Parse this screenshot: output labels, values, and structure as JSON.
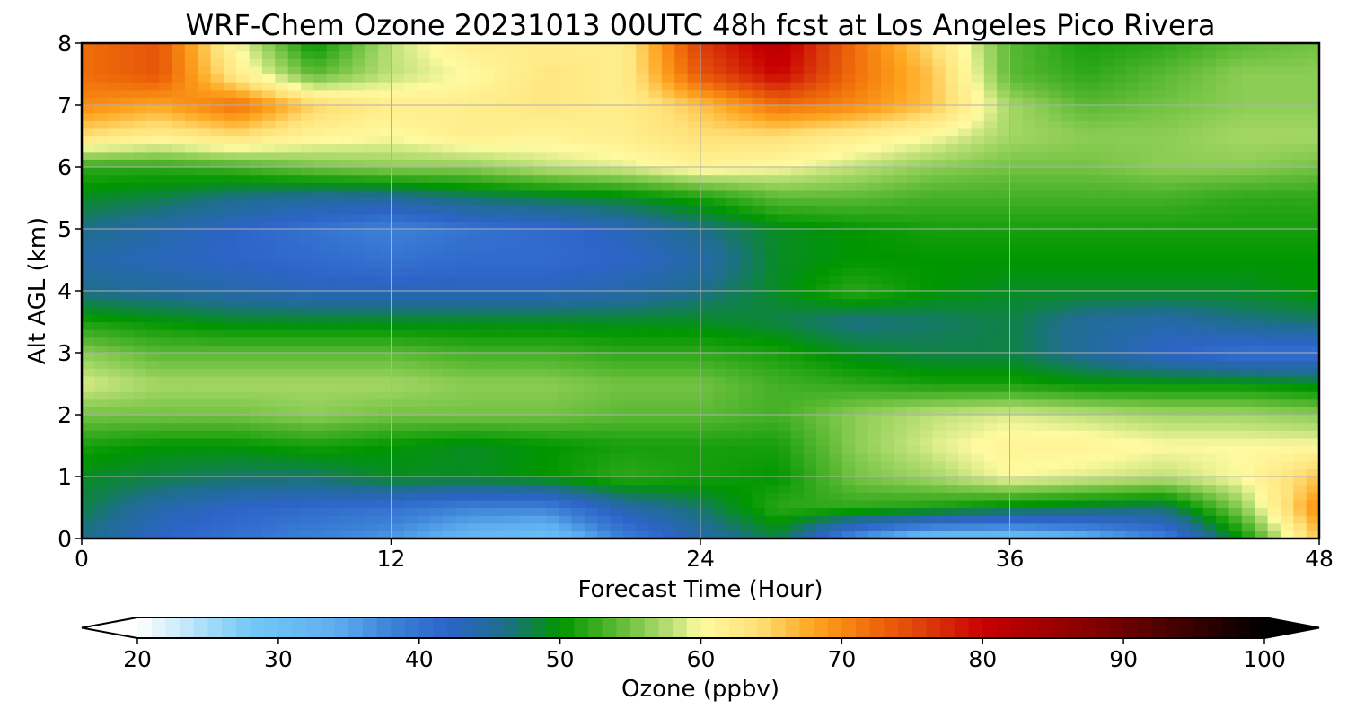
{
  "chart_data": {
    "type": "heatmap",
    "title": "WRF-Chem Ozone  20231013 00UTC 48h fcst at Los Angeles Pico Rivera",
    "xlabel": "Forecast Time (Hour)",
    "ylabel": "Alt AGL (km)",
    "xlim": [
      0,
      48
    ],
    "ylim": [
      0,
      8
    ],
    "x_ticks": [
      0,
      12,
      24,
      36,
      48
    ],
    "y_ticks": [
      0,
      1,
      2,
      3,
      4,
      5,
      6,
      7,
      8
    ],
    "grid": true,
    "x": [
      0,
      3,
      6,
      9,
      12,
      15,
      18,
      21,
      24,
      27,
      30,
      33,
      36,
      39,
      42,
      45,
      48
    ],
    "y": [
      0,
      0.5,
      1,
      1.5,
      2,
      2.5,
      3,
      3.5,
      4,
      4.5,
      5,
      5.5,
      6,
      6.5,
      7,
      7.5,
      8
    ],
    "z": [
      [
        46,
        42,
        40,
        38,
        36,
        32,
        30,
        38,
        44,
        48,
        36,
        30,
        30,
        33,
        38,
        50,
        66
      ],
      [
        48,
        44,
        42,
        41,
        40,
        38,
        38,
        44,
        47,
        52,
        52,
        51,
        49,
        48,
        47,
        56,
        70
      ],
      [
        49,
        48,
        47,
        47,
        49,
        49,
        50,
        52,
        51,
        50,
        55,
        57,
        60,
        59,
        58,
        60,
        66
      ],
      [
        51,
        50,
        50,
        51,
        50,
        49,
        50,
        51,
        51,
        51,
        56,
        59,
        61,
        61,
        60,
        60,
        60
      ],
      [
        55,
        55,
        55,
        56,
        55,
        55,
        55,
        54,
        54,
        53,
        56,
        58,
        59,
        58,
        57,
        57,
        56
      ],
      [
        59,
        57,
        57,
        57,
        57,
        56,
        56,
        55,
        55,
        53,
        52,
        51,
        51,
        50,
        50,
        50,
        49
      ],
      [
        56,
        54,
        54,
        54,
        54,
        53,
        53,
        52,
        52,
        51,
        49,
        48,
        48,
        45,
        42,
        40,
        40
      ],
      [
        51,
        50,
        49,
        49,
        49,
        49,
        49,
        49,
        49,
        48,
        46,
        47,
        48,
        45,
        44,
        46,
        47
      ],
      [
        46,
        45,
        44,
        43,
        43,
        43,
        43,
        44,
        46,
        49,
        52,
        50,
        49,
        49,
        49,
        49,
        50
      ],
      [
        44,
        43,
        42,
        41,
        40,
        41,
        41,
        42,
        44,
        49,
        50,
        50,
        50,
        50,
        50,
        50,
        50
      ],
      [
        46,
        44,
        42,
        40,
        38,
        40,
        41,
        43,
        46,
        49,
        50,
        51,
        51,
        51,
        51,
        51,
        51
      ],
      [
        49,
        48,
        46,
        45,
        45,
        47,
        48,
        49,
        51,
        54,
        54,
        53,
        53,
        53,
        53,
        52,
        52
      ],
      [
        52,
        52,
        53,
        55,
        56,
        56,
        58,
        59,
        61,
        60,
        58,
        56,
        55,
        55,
        56,
        56,
        55
      ],
      [
        64,
        62,
        64,
        61,
        60,
        62,
        61,
        62,
        64,
        64,
        62,
        60,
        57,
        56,
        56,
        57,
        57
      ],
      [
        70,
        68,
        72,
        65,
        62,
        62,
        63,
        62,
        66,
        72,
        70,
        66,
        57,
        54,
        55,
        56,
        56
      ],
      [
        72,
        74,
        62,
        54,
        58,
        60,
        63,
        62,
        74,
        80,
        72,
        66,
        54,
        52,
        54,
        56,
        56
      ],
      [
        72,
        74,
        60,
        50,
        58,
        62,
        62,
        62,
        76,
        82,
        72,
        64,
        54,
        51,
        52,
        54,
        55
      ]
    ],
    "colorbar": {
      "label": "Ozone  (ppbv)",
      "min": 20,
      "max": 100,
      "ticks": [
        20,
        30,
        40,
        50,
        60,
        70,
        80,
        90,
        100
      ],
      "extend": "both"
    }
  }
}
